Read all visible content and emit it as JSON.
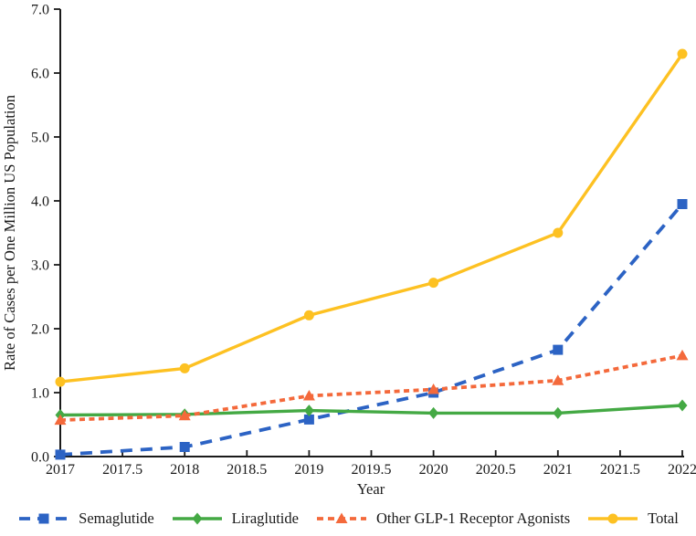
{
  "chart_data": {
    "type": "line",
    "title": "",
    "xlabel": "Year",
    "ylabel": "Rate of Cases per One Million US Population",
    "x": [
      2017,
      2018,
      2019,
      2020,
      2021,
      2022
    ],
    "xlim": [
      2017,
      2022
    ],
    "ylim": [
      0,
      7
    ],
    "grid": false,
    "legend_position": "bottom",
    "xtick_labels": [
      "2017",
      "2017.5",
      "2018",
      "2018.5",
      "2019",
      "2019.5",
      "2020",
      "2020.5",
      "2021",
      "2021.5",
      "2022"
    ],
    "ytick_labels": [
      "0.0",
      "1.0",
      "2.0",
      "3.0",
      "4.0",
      "5.0",
      "6.0",
      "7.0"
    ],
    "axis_color": "#1a1a1a",
    "series": [
      {
        "name": "Semaglutide",
        "color": "#2C63C4",
        "line_style": "dashed",
        "marker": "square",
        "values": [
          0.03,
          0.15,
          0.58,
          1.0,
          1.67,
          3.95
        ]
      },
      {
        "name": "Liraglutide",
        "color": "#44A944",
        "line_style": "solid",
        "marker": "diamond",
        "values": [
          0.65,
          0.66,
          0.72,
          0.68,
          0.68,
          0.8
        ]
      },
      {
        "name": "Other GLP-1 Receptor Agonists",
        "color": "#F4693B",
        "line_style": "dashed",
        "marker": "triangle",
        "values": [
          0.57,
          0.64,
          0.95,
          1.05,
          1.19,
          1.58
        ]
      },
      {
        "name": "Total",
        "color": "#FDC122",
        "line_style": "solid",
        "marker": "circle",
        "values": [
          1.17,
          1.38,
          2.21,
          2.72,
          3.5,
          6.3
        ]
      }
    ]
  }
}
